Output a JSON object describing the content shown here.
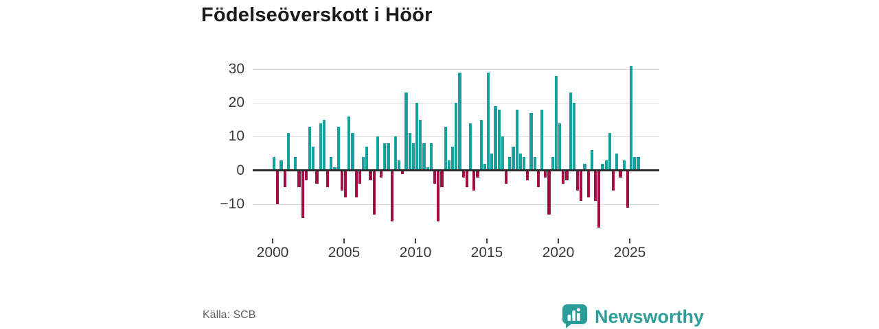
{
  "chart_data": {
    "type": "bar",
    "title": "Födelseöverskott i Höör",
    "frequency": "quarterly",
    "start_period": "2000-Q1",
    "end_period": "2025-Q3",
    "series_note": "Birth surplus per quarter; one bar per quarter from 2000Q1",
    "values": [
      4,
      -10,
      3,
      -5,
      11,
      0,
      4,
      -5,
      -14,
      -3,
      13,
      7,
      -4,
      14,
      15,
      -5,
      4,
      1,
      13,
      -6,
      -8,
      16,
      11,
      -8,
      -4,
      4,
      7,
      -3,
      -13,
      10,
      -2,
      8,
      8,
      -15,
      10,
      3,
      -1,
      23,
      11,
      8,
      20,
      15,
      8,
      1,
      8,
      -4,
      -15,
      -5,
      13,
      3,
      7,
      20,
      29,
      -2,
      -5,
      14,
      -6,
      -2,
      15,
      2,
      29,
      5,
      19,
      18,
      10,
      -4,
      4,
      7,
      18,
      5,
      4,
      -3,
      17,
      4,
      -5,
      18,
      -2,
      -13,
      4,
      28,
      14,
      -4,
      -3,
      23,
      20,
      -6,
      -9,
      2,
      -8,
      6,
      -9,
      -17,
      2,
      3,
      11,
      -6,
      5,
      -2,
      3,
      -11,
      31,
      4,
      4
    ],
    "x_tick_labels": [
      "2000",
      "2005",
      "2010",
      "2015",
      "2020",
      "2025"
    ],
    "y_ticks": [
      30,
      20,
      10,
      0,
      -10
    ],
    "y_tick_labels": [
      "30",
      "20",
      "10",
      "0",
      "−10"
    ],
    "ylim": [
      -19,
      33
    ],
    "grid": "horizontal",
    "legend": "none",
    "positive_color": "#14a2a0",
    "negative_color": "#a50d45"
  },
  "footer": {
    "source": "Källa: SCB",
    "logo_text": "Newsworthy",
    "logo_color": "#2f9e99"
  }
}
